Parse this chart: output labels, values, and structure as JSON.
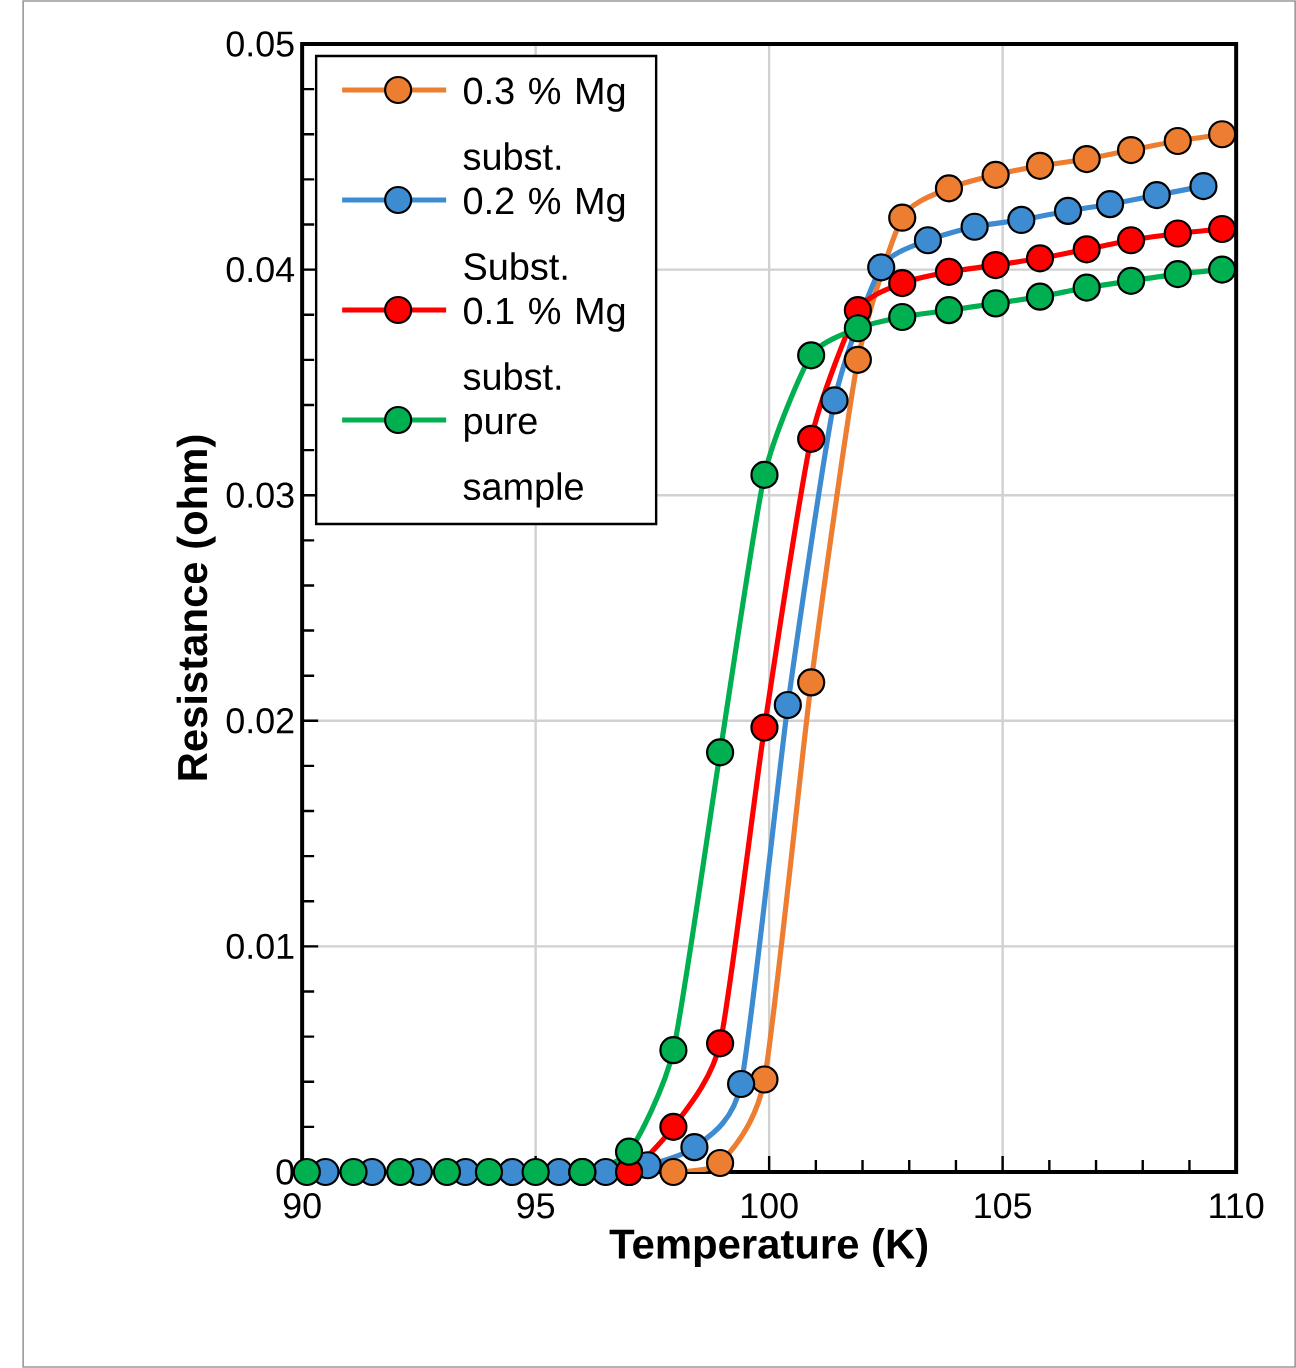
{
  "chart_data": {
    "type": "line",
    "xlabel": "Temperature (K)",
    "ylabel": "Resistance (ohm)",
    "xlim": [
      90,
      110
    ],
    "xticks": [
      90,
      95,
      100,
      105,
      110
    ],
    "ylim": [
      0,
      0.05
    ],
    "yticks": [
      0,
      0.01,
      0.02,
      0.03,
      0.04,
      0.05
    ],
    "grid": true,
    "legend": "top left",
    "marker": "circle",
    "series": [
      {
        "name": "0.3 % Mg subst.",
        "color": "#ed7d31",
        "x": [
          97.0,
          97.95,
          98.95,
          99.9,
          100.9,
          101.9,
          102.85,
          103.85,
          104.85,
          105.8,
          106.8,
          107.75,
          108.75,
          109.7
        ],
        "values": [
          0,
          0,
          0.0004,
          0.0041,
          0.0217,
          0.036,
          0.0423,
          0.0436,
          0.0442,
          0.0446,
          0.0449,
          0.0453,
          0.0457,
          0.046
        ]
      },
      {
        "name": "0.2 % Mg Subst.",
        "color": "#3d8bd0",
        "x": [
          90.5,
          91.5,
          92.5,
          93.5,
          94.5,
          95.5,
          96.5,
          97.4,
          98.4,
          99.4,
          100.4,
          101.4,
          102.4,
          103.4,
          104.4,
          105.4,
          106.4,
          107.3,
          108.3,
          109.3
        ],
        "values": [
          0,
          0,
          0,
          0,
          0,
          0,
          0,
          0.0003,
          0.0011,
          0.0039,
          0.0207,
          0.0342,
          0.0401,
          0.0413,
          0.0419,
          0.0422,
          0.0426,
          0.0429,
          0.0433,
          0.0437
        ]
      },
      {
        "name": "0.1 % Mg subst.",
        "color": "#ff0000",
        "x": [
          96.0,
          97.0,
          97.95,
          98.95,
          99.9,
          100.9,
          101.9,
          102.85,
          103.85,
          104.85,
          105.8,
          106.8,
          107.75,
          108.75,
          109.7
        ],
        "values": [
          0,
          0,
          0.002,
          0.0057,
          0.0197,
          0.0325,
          0.0382,
          0.0394,
          0.0399,
          0.0402,
          0.0405,
          0.0409,
          0.0413,
          0.0416,
          0.0418
        ]
      },
      {
        "name": "pure sample",
        "color": "#00b050",
        "x": [
          90.1,
          91.1,
          92.1,
          93.1,
          94.0,
          95.0,
          96.0,
          97.0,
          97.95,
          98.95,
          99.9,
          100.9,
          101.9,
          102.85,
          103.85,
          104.85,
          105.8,
          106.8,
          107.75,
          108.75,
          109.7
        ],
        "values": [
          0,
          0,
          0,
          0,
          0,
          0,
          0,
          0.0009,
          0.0054,
          0.0186,
          0.0309,
          0.0362,
          0.0374,
          0.0379,
          0.0382,
          0.0385,
          0.0388,
          0.0392,
          0.0395,
          0.0398,
          0.04
        ]
      }
    ]
  }
}
